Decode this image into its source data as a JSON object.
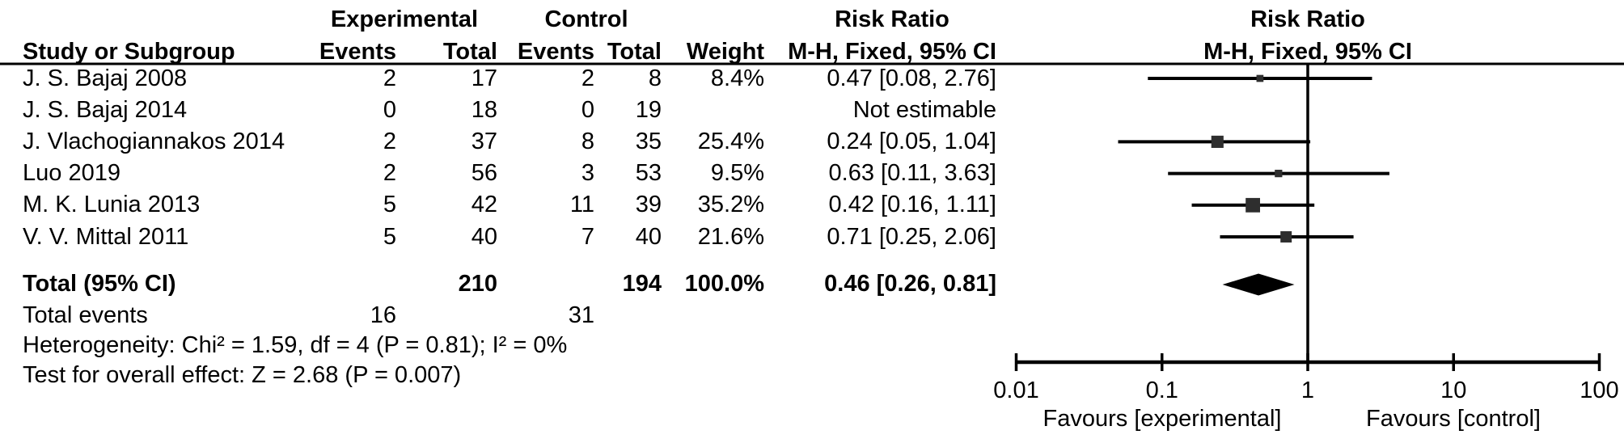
{
  "table": {
    "headers": {
      "study": "Study or Subgroup",
      "group_experimental": "Experimental",
      "group_control": "Control",
      "events": "Events",
      "total": "Total",
      "events2": "Events",
      "total2": "Total",
      "weight": "Weight",
      "rr_title": "Risk Ratio",
      "rr_subtitle": "M-H, Fixed, 95% CI",
      "plot_title": "Risk Ratio",
      "plot_subtitle": "M-H, Fixed, 95% CI"
    },
    "rows": [
      {
        "study": "J. S. Bajaj 2008",
        "exp_events": "2",
        "exp_total": "17",
        "ctl_events": "2",
        "ctl_total": "8",
        "weight": "8.4%",
        "rr_ci": "0.47 [0.08, 2.76]"
      },
      {
        "study": "J. S. Bajaj 2014",
        "exp_events": "0",
        "exp_total": "18",
        "ctl_events": "0",
        "ctl_total": "19",
        "weight": "",
        "rr_ci": "Not estimable"
      },
      {
        "study": "J. Vlachogiannakos 2014",
        "exp_events": "2",
        "exp_total": "37",
        "ctl_events": "8",
        "ctl_total": "35",
        "weight": "25.4%",
        "rr_ci": "0.24 [0.05, 1.04]"
      },
      {
        "study": "Luo 2019",
        "exp_events": "2",
        "exp_total": "56",
        "ctl_events": "3",
        "ctl_total": "53",
        "weight": "9.5%",
        "rr_ci": "0.63 [0.11, 3.63]"
      },
      {
        "study": "M. K. Lunia 2013",
        "exp_events": "5",
        "exp_total": "42",
        "ctl_events": "11",
        "ctl_total": "39",
        "weight": "35.2%",
        "rr_ci": "0.42 [0.16, 1.11]"
      },
      {
        "study": "V. V. Mittal 2011",
        "exp_events": "5",
        "exp_total": "40",
        "ctl_events": "7",
        "ctl_total": "40",
        "weight": "21.6%",
        "rr_ci": "0.71 [0.25, 2.06]"
      }
    ],
    "total_row": {
      "label": "Total (95% CI)",
      "exp_total": "210",
      "ctl_total": "194",
      "weight": "100.0%",
      "rr_ci": "0.46 [0.26, 0.81]"
    },
    "total_events": {
      "label": "Total events",
      "exp": "16",
      "ctl": "31"
    },
    "heterogeneity": "Heterogeneity: Chi² = 1.59, df = 4 (P = 0.81); I² = 0%",
    "overall_effect": "Test for overall effect: Z = 2.68 (P = 0.007)"
  },
  "chart_data": {
    "type": "scatter",
    "subtype": "forest-plot",
    "effect_measure": "Risk Ratio (M-H, Fixed, 95% CI)",
    "scale": "log10",
    "axis_range": [
      0.01,
      100
    ],
    "axis_ticks": [
      0.01,
      0.1,
      1,
      10,
      100
    ],
    "axis_tick_labels": [
      "0.01",
      "0.1",
      "1",
      "10",
      "100"
    ],
    "null_line": 1,
    "favours_left": "Favours [experimental]",
    "favours_right": "Favours [control]",
    "studies": [
      {
        "name": "J. S. Bajaj 2008",
        "rr": 0.47,
        "ci_low": 0.08,
        "ci_high": 2.76,
        "weight_pct": 8.4
      },
      {
        "name": "J. S. Bajaj 2014",
        "rr": null,
        "ci_low": null,
        "ci_high": null,
        "weight_pct": null,
        "note": "Not estimable"
      },
      {
        "name": "J. Vlachogiannakos 2014",
        "rr": 0.24,
        "ci_low": 0.05,
        "ci_high": 1.04,
        "weight_pct": 25.4
      },
      {
        "name": "Luo 2019",
        "rr": 0.63,
        "ci_low": 0.11,
        "ci_high": 3.63,
        "weight_pct": 9.5
      },
      {
        "name": "M. K. Lunia 2013",
        "rr": 0.42,
        "ci_low": 0.16,
        "ci_high": 1.11,
        "weight_pct": 35.2
      },
      {
        "name": "V. V. Mittal 2011",
        "rr": 0.71,
        "ci_low": 0.25,
        "ci_high": 2.06,
        "weight_pct": 21.6
      }
    ],
    "total": {
      "rr": 0.46,
      "ci_low": 0.26,
      "ci_high": 0.81
    }
  },
  "colors": {
    "text": "#000000",
    "lines": "#000000",
    "marker_square": "#2e2e2e",
    "diamond": "#000000",
    "background": "#ffffff"
  }
}
